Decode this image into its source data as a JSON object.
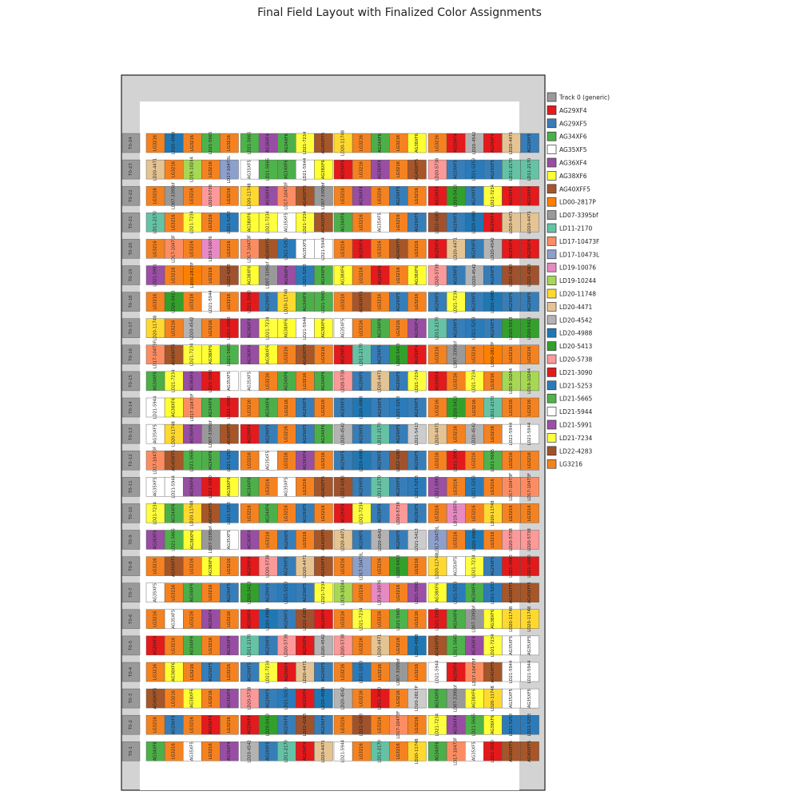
{
  "chart_data": {
    "type": "table",
    "title": "Final Field Layout with Finalized Color Assignments",
    "track_label": "Track 0 (generic)",
    "track_color": "#999999",
    "legend_position": "right",
    "legend": [
      {
        "label": "Track 0 (generic)",
        "color": "#999999"
      },
      {
        "label": "AG29XF4",
        "color": "#e41a1c"
      },
      {
        "label": "AG29XF5",
        "color": "#377eb8"
      },
      {
        "label": "AG34XF6",
        "color": "#4daf4a"
      },
      {
        "label": "AG35XF5",
        "color": "#ffffff"
      },
      {
        "label": "AG36XF4",
        "color": "#984ea3"
      },
      {
        "label": "AG38XF6",
        "color": "#ffff33"
      },
      {
        "label": "AG40XFF5",
        "color": "#a65628"
      },
      {
        "label": "LD00-2817P",
        "color": "#ff7f00"
      },
      {
        "label": "LD07-3395bf",
        "color": "#999999"
      },
      {
        "label": "LD11-2170",
        "color": "#66c2a5"
      },
      {
        "label": "LD17-10473F",
        "color": "#fc8d62"
      },
      {
        "label": "LD17-10473L",
        "color": "#8da0cb"
      },
      {
        "label": "LD19-10076",
        "color": "#e78ac3"
      },
      {
        "label": "LD19-10244",
        "color": "#a6d854"
      },
      {
        "label": "LD20-11748",
        "color": "#ffd92f"
      },
      {
        "label": "LD20-4471",
        "color": "#e5c494"
      },
      {
        "label": "LD20-4542",
        "color": "#b3b3b3"
      },
      {
        "label": "LD20-4988",
        "color": "#1f78b4"
      },
      {
        "label": "LD20-5413",
        "color": "#33a02c"
      },
      {
        "label": "LD20-5738",
        "color": "#fb9a99"
      },
      {
        "label": "LD21-3090",
        "color": "#e31a1c"
      },
      {
        "label": "LD21-5253",
        "color": "#2b7bba"
      },
      {
        "label": "LD21-5665",
        "color": "#4eb34a"
      },
      {
        "label": "LD21-5944",
        "color": "#ffffff"
      },
      {
        "label": "LD21-5991",
        "color": "#9b4fa5"
      },
      {
        "label": "LD21-7234",
        "color": "#ffff40"
      },
      {
        "label": "LD22-4283",
        "color": "#a0522d"
      },
      {
        "label": "LG3216",
        "color": "#f58220"
      }
    ],
    "tracks": [
      "T0-24",
      "T0-23",
      "T0-22",
      "T0-21",
      "T0-20",
      "T0-19",
      "T0-18",
      "T0-17",
      "T0-16",
      "T0-15",
      "T0-14",
      "T0-13",
      "T0-12",
      "T0-11",
      "T0-10",
      "T0-9",
      "T0-8",
      "T0-7",
      "T0-6",
      "T0-5",
      "T0-4",
      "T0-3",
      "T0-2",
      "T0-1"
    ],
    "rows": [
      [
        "LG3216",
        "LD20-4988",
        "LG3216",
        "LD21-5665",
        "LG3216",
        "LD21-5665",
        "AG36XF4",
        "AG34XF6",
        "LD21-7234",
        "AG40XFF5",
        "LD20-11748",
        "LG3216",
        "AG34XF6",
        "LG3216",
        "AG38XF6",
        "LG3216",
        "AG29XF4",
        "LD20-4542",
        "AG29XF4",
        "LD20-4471",
        "AG29XF5"
      ],
      [
        "LD20-4471",
        "LG3216",
        "LD19-10244",
        "LG3216",
        "LD17-10473L",
        "AG35XF5",
        "LD21-5665",
        "AG34XF6",
        "LD21-5944",
        "AG38XF6",
        "AG29XF4",
        "LG3216",
        "AG36XF4",
        "LG3216",
        "AG40XFF5",
        "LD20-5738",
        "AG29XF5",
        "LD21-5253",
        "AG29XF5",
        "LD11-2170",
        "LD11-2170"
      ],
      [
        "LG3216",
        "LD07-3395bf",
        "LG3216",
        "LD20-5738",
        "LG3216",
        "LD20-11748",
        "AG36XF4",
        "LD17-10473F",
        "AG40XFF5",
        "LD07-3395bf",
        "LG3216",
        "AG36XF4",
        "LG3216",
        "AG29XF5",
        "LG3216",
        "AG29XF4",
        "LD20-5413",
        "AG29XF5",
        "LD21-7234",
        "AG29XF4",
        "AG29XF4"
      ],
      [
        "LD11-2170",
        "LG3216",
        "LD21-7234",
        "LG3216",
        "LD21-5253",
        "AG38XF6",
        "LD21-7234",
        "AG35XF5",
        "LD21-7234",
        "AG40XFF5",
        "AG34XF6",
        "LG3216",
        "AG35XF5",
        "LG3216",
        "AG29XF5",
        "LD22-4283",
        "AG29XF5",
        "LD20-4988",
        "AG29XF4",
        "LD20-4471",
        "LD20-4471"
      ],
      [
        "LG3216",
        "LD17-10473F",
        "LG3216",
        "LD19-10076",
        "LG3216",
        "LD17-10473F",
        "AG40XFF5",
        "LD21-5253",
        "AG35XF5",
        "LD21-5944",
        "LG3216",
        "AG29XF4",
        "LG3216",
        "AG40XFF5",
        "LG3216",
        "AG29XF4",
        "LD20-4471",
        "AG29XF5",
        "LD20-4542",
        "AG29XF4",
        "AG29XF4"
      ],
      [
        "LD21-5991",
        "LG3216",
        "LD00-2817P",
        "LG3216",
        "LD22-4283",
        "AG38XF6",
        "LD07-3395bf",
        "AG36XF4",
        "LD21-5253",
        "AG34XF6",
        "AG38XF6",
        "LG3216",
        "AG29XF4",
        "LG3216",
        "AG38XF6",
        "LD20-5738",
        "AG29XF5",
        "LD20-4542",
        "AG29XF5",
        "LD22-4283",
        "LD22-4283"
      ],
      [
        "LG3216",
        "LD20-5413",
        "LG3216",
        "LD21-5944",
        "LG3216",
        "LD21-3090",
        "AG29XF5",
        "LD20-11748",
        "AG34XF6",
        "LD21-5665",
        "LG3216",
        "AG40XFF5",
        "LG3216",
        "AG29XF5",
        "LG3216",
        "AG29XF5",
        "LD21-7234",
        "AG29XF5",
        "LD20-4988",
        "AG29XF5",
        "AG29XF5"
      ],
      [
        "LD20-11748",
        "LG3216",
        "LD20-4542",
        "LG3216",
        "LD21-3090",
        "AG36XF4",
        "LD21-7234",
        "AG38XF6",
        "LD21-5944",
        "AG38XF6",
        "AG35XF5",
        "LG3216",
        "AG34XF6",
        "LG3216",
        "AG36XF4",
        "LD11-2170",
        "AG29XF5",
        "LD21-5253",
        "AG29XF5",
        "LD20-5413",
        "LD20-5413"
      ],
      [
        "LD17-10473F",
        "AG40XFF5",
        "LD21-7234",
        "AG38XF6",
        "LD21-5665",
        "AG36XF4",
        "AG38XF6",
        "LG3216",
        "AG40XFF5",
        "LG3216",
        "AG29XF4",
        "LD11-2170",
        "AG29XF5",
        "LD20-5413",
        "AG29XF4",
        "LG3216",
        "LD07-3395bf",
        "LG3216",
        "LD00-2817P",
        "LG3216",
        "LG3216"
      ],
      [
        "AG34XF6",
        "LD21-7234",
        "AG36XF4",
        "LD21-3090",
        "AG35XF5",
        "AG35XF5",
        "LG3216",
        "AG34XF6",
        "LG3216",
        "AG34XF6",
        "LD20-5738",
        "AG29XF5",
        "LD20-4471",
        "AG29XF5",
        "LD21-7234",
        "AG29XF4",
        "LG3216",
        "LD21-7234",
        "LG3216",
        "LD19-10244",
        "LD19-10244"
      ],
      [
        "LD21-5944",
        "AG38XF6",
        "LD17-10473F",
        "AG34XF6",
        "LD21-3090",
        "LG3216",
        "AG34XF6",
        "LG3216",
        "AG29XF5",
        "LG3216",
        "AG29XF5",
        "LD20-4988",
        "AG29XF5",
        "LD21-5253",
        "AG29XF5",
        "LG3216",
        "LD20-5413",
        "LG3216",
        "LD11-2170",
        "LG3216",
        "LG3216"
      ],
      [
        "AG35XF5",
        "LD20-11748",
        "AG36XF4",
        "LD07-3395bf",
        "AG40XFF5",
        "AG29XF4",
        "AG29XF5",
        "LG3216",
        "AG29XF5",
        "AG34XF6",
        "LD20-4542",
        "AG29XF5",
        "LD11-2170",
        "AG29XF5",
        "LD21-5413",
        "LD20-4471",
        "LG3216",
        "LD20-4542",
        "LG3216",
        "LD21-5944",
        "LD21-5944"
      ],
      [
        "LD17-10473F",
        "AG40XFF5",
        "LD21-5665",
        "AG34XF6",
        "LD21-5253",
        "LG3216",
        "AG35XF5",
        "LG3216",
        "AG36XF4",
        "LG3216",
        "AG29XF5",
        "LD20-4988",
        "AG29XF5",
        "LD22-4283",
        "AG29XF5",
        "LG3216",
        "LD21-3090",
        "LG3216",
        "LD21-5665",
        "LG3216",
        "LG3216"
      ],
      [
        "AG35XF5",
        "LD21-5944",
        "AG36XF4",
        "LD21-3090",
        "AG38XF6",
        "AG34XF6",
        "LG3216",
        "AG35XF5",
        "LG3216",
        "AG40XFF5",
        "LD22-4283",
        "AG29XF5",
        "LD11-2170",
        "AG29XF5",
        "LD21-5253",
        "LD21-5991",
        "LG3216",
        "LD21-5253",
        "LG3216",
        "LD17-10473F",
        "LD17-10473F"
      ],
      [
        "LD21-7234",
        "AG34XF6",
        "LD20-11748",
        "AG40XFF5",
        "LD21-5253",
        "LG3216",
        "AG34XF6",
        "LG3216",
        "AG29XF5",
        "LG3216",
        "AG29XF4",
        "LD21-7234",
        "AG29XF5",
        "LD20-5738",
        "AG29XF5",
        "LG3216",
        "LD19-10076",
        "LG3216",
        "LD20-11748",
        "LG3216",
        "LG3216"
      ],
      [
        "AG36XF4",
        "LD21-5665",
        "AG38XF6",
        "LD07-3395bf",
        "AG35XF5",
        "AG36XF4",
        "LG3216",
        "AG29XF5",
        "LG3216",
        "AG40XFF5",
        "LD20-4471",
        "AG29XF5",
        "LD20-4542",
        "AG29XF5",
        "LD21-5413",
        "LD17-10473L",
        "LG3216",
        "LD20-4988",
        "LG3216",
        "LD20-5738",
        "LD20-5738"
      ],
      [
        "LG3216",
        "AG40XFF5",
        "LG3216",
        "AG38XF6",
        "LG3216",
        "AG29XF4",
        "LD20-5738",
        "AG29XF5",
        "LD20-4471",
        "AG40XFF5",
        "LG3216",
        "LD17-10473L",
        "LG3216",
        "LD20-5413",
        "LG3216",
        "LD20-11748",
        "AG35XF5",
        "LD21-7234",
        "AG29XF5",
        "LD21-3090",
        "LD21-3090"
      ],
      [
        "AG35XF5",
        "LG3216",
        "AG34XF6",
        "LG3216",
        "AG29XF5",
        "LD20-5413",
        "AG29XF5",
        "LD21-5253",
        "AG29XF5",
        "LD21-7234",
        "LD19-10244",
        "LG3216",
        "LD19-10076",
        "LG3216",
        "LD21-5991",
        "AG38XF6",
        "LD21-5253",
        "AG34XF6",
        "LD21-5253",
        "AG40XFF5",
        "AG40XFF5"
      ],
      [
        "LG3216",
        "AG35XF5",
        "LG3216",
        "AG36XF4",
        "LG3216",
        "AG29XF4",
        "LD20-4988",
        "AG29XF5",
        "LD22-4283",
        "AG29XF4",
        "LG3216",
        "LD21-7234",
        "LG3216",
        "LD21-5665",
        "LG3216",
        "LD21-3090",
        "AG34XF6",
        "LD07-3395bf",
        "AG38XF6",
        "LD20-11748",
        "LD20-11748"
      ],
      [
        "AG29XF4",
        "LG3216",
        "AG34XF6",
        "LG3216",
        "AG36XF4",
        "LD11-2170",
        "AG29XF5",
        "LD20-5738",
        "AG29XF4",
        "LD20-4542",
        "LD20-5738",
        "LG3216",
        "LD20-4471",
        "LG3216",
        "LD20-4988",
        "AG40XFF5",
        "LD21-5665",
        "AG36XF4",
        "LD21-7234",
        "AG35XF5",
        "AG35XF5"
      ],
      [
        "LG3216",
        "AG38XF6",
        "LG3216",
        "AG29XF5",
        "LG3216",
        "AG29XF5",
        "LD21-7234",
        "AG29XF4",
        "LD20-4471",
        "AG29XF5",
        "LG3216",
        "LD21-5253",
        "LG3216",
        "LD07-3395bf",
        "LG3216",
        "LD21-5944",
        "AG29XF4",
        "LD17-10473F",
        "AG40XFF5",
        "LD21-5944",
        "LD21-5944"
      ],
      [
        "AG40XFF5",
        "LG3216",
        "AG38XF6",
        "LG3216",
        "AG36XF4",
        "LD20-5738",
        "AG29XF5",
        "LD21-5253",
        "AG29XF4",
        "LD20-4988",
        "LD20-4542",
        "LG3216",
        "LD21-3090",
        "LG3216",
        "LD20-2817P",
        "AG34XF6",
        "LD07-3395bf",
        "AG38XF6",
        "LD20-11748",
        "AG35XF5",
        "AG35XF5"
      ],
      [
        "LG3216",
        "AG29XF5",
        "LG3216",
        "AG29XF4",
        "LG3216",
        "AG29XF4",
        "LD20-5413",
        "AG29XF5",
        "LD22-4283",
        "AG29XF5",
        "LG3216",
        "LD22-4283",
        "LG3216",
        "LD17-10473F",
        "LG3216",
        "LD21-7234",
        "AG36XF4",
        "LD21-5665",
        "AG38XF6",
        "LD21-5253",
        "LD21-5253"
      ],
      [
        "AG34XF6",
        "LG3216",
        "AG35XF5",
        "LG3216",
        "AG36XF4",
        "LD20-4542",
        "AG29XF5",
        "LD11-2170",
        "AG29XF4",
        "LD20-4471",
        "LD21-5944",
        "LG3216",
        "LD11-2170",
        "LG3216",
        "LD20-11748",
        "AG34XF6",
        "LD17-10473F",
        "AG35XF5",
        "LD21-3090",
        "AG40XFF5",
        "AG40XFF5"
      ]
    ]
  }
}
